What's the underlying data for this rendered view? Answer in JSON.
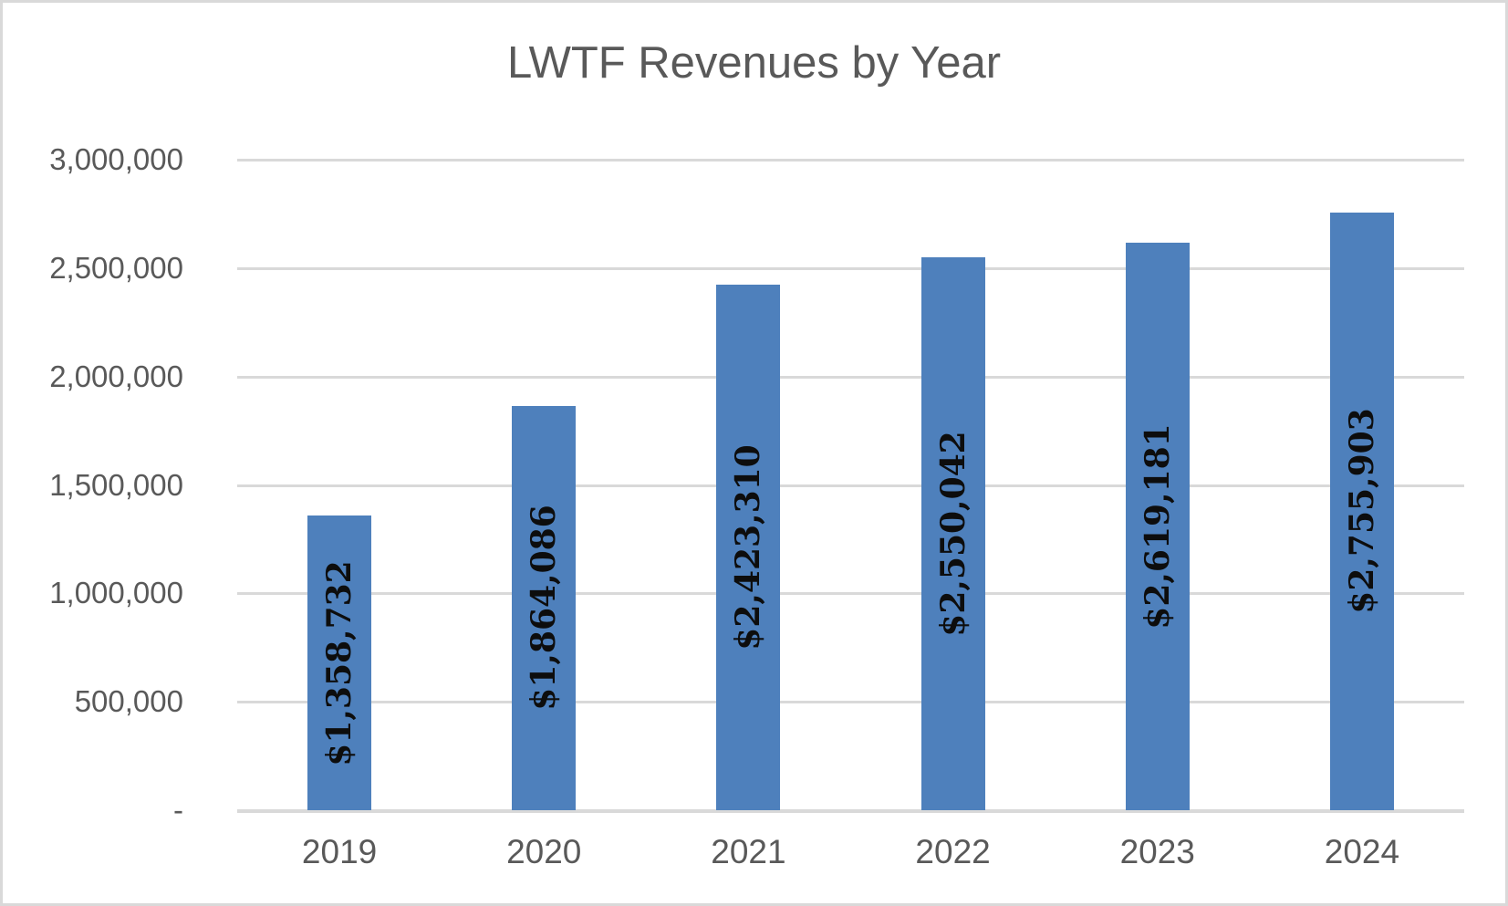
{
  "frame": {
    "background": "#ffffff",
    "border_color": "#d9d9d9"
  },
  "chart_data": {
    "type": "bar",
    "title": "LWTF Revenues by Year",
    "xlabel": "",
    "ylabel": "",
    "categories": [
      "2019",
      "2020",
      "2021",
      "2022",
      "2023",
      "2024"
    ],
    "values": [
      1358732,
      1864086,
      2423310,
      2550042,
      2619181,
      2755903
    ],
    "data_labels": [
      "$1,358,732",
      "$1,864,086",
      "$2,423,310",
      "$2,550,042",
      "$2,619,181",
      "$2,755,903"
    ],
    "data_label_position": "center-inside",
    "data_label_orientation": "rotated-90",
    "y_ticks": [
      {
        "value": 3000000,
        "label": "3,000,000"
      },
      {
        "value": 2500000,
        "label": "2,500,000"
      },
      {
        "value": 2000000,
        "label": "2,000,000"
      },
      {
        "value": 1500000,
        "label": "1,500,000"
      },
      {
        "value": 1000000,
        "label": "1,000,000"
      },
      {
        "value": 500000,
        "label": "500,000"
      },
      {
        "value": 0,
        "label": "-"
      }
    ],
    "ylim": [
      0,
      3000000
    ],
    "grid": true,
    "legend": "none",
    "colors": {
      "bar": "#4e80bc",
      "gridline": "#d9d9d9",
      "axis_text": "#595959",
      "title_text": "#595959",
      "data_label_text": "#0d0d0d"
    }
  }
}
